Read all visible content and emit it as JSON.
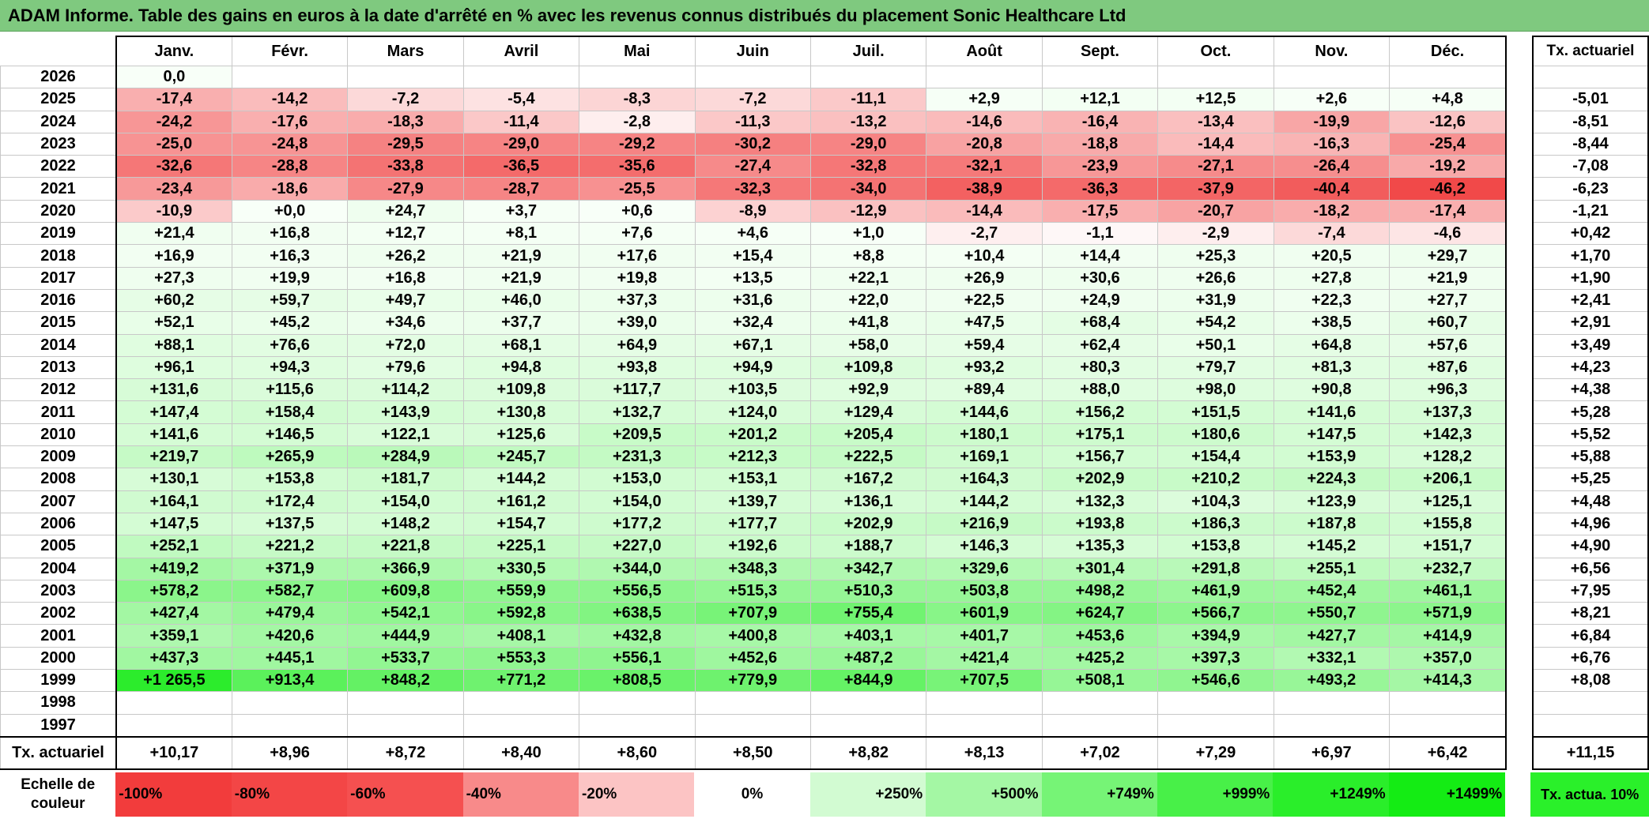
{
  "title": "ADAM Informe. Table des gains en euros à la date d'arrêté en % avec les revenus connus distribués du placement Sonic Healthcare Ltd",
  "months": [
    "Janv.",
    "Févr.",
    "Mars",
    "Avril",
    "Mai",
    "Juin",
    "Juil.",
    "Août",
    "Sept.",
    "Oct.",
    "Nov.",
    "Déc."
  ],
  "side_header": "Tx. actuariel",
  "rows": [
    {
      "year": "2026",
      "values": [
        "0,0",
        "",
        "",
        "",
        "",
        "",
        "",
        "",
        "",
        "",
        "",
        ""
      ],
      "rate": ""
    },
    {
      "year": "2025",
      "values": [
        "-17,4",
        "-14,2",
        "-7,2",
        "-5,4",
        "-8,3",
        "-7,2",
        "-11,1",
        "+2,9",
        "+12,1",
        "+12,5",
        "+2,6",
        "+4,8"
      ],
      "rate": "-5,01"
    },
    {
      "year": "2024",
      "values": [
        "-24,2",
        "-17,6",
        "-18,3",
        "-11,4",
        "-2,8",
        "-11,3",
        "-13,2",
        "-14,6",
        "-16,4",
        "-13,4",
        "-19,9",
        "-12,6"
      ],
      "rate": "-8,51"
    },
    {
      "year": "2023",
      "values": [
        "-25,0",
        "-24,8",
        "-29,5",
        "-29,0",
        "-29,2",
        "-30,2",
        "-29,0",
        "-20,8",
        "-18,8",
        "-14,4",
        "-16,3",
        "-25,4"
      ],
      "rate": "-8,44"
    },
    {
      "year": "2022",
      "values": [
        "-32,6",
        "-28,8",
        "-33,8",
        "-36,5",
        "-35,6",
        "-27,4",
        "-32,8",
        "-32,1",
        "-23,9",
        "-27,1",
        "-26,4",
        "-19,2"
      ],
      "rate": "-7,08"
    },
    {
      "year": "2021",
      "values": [
        "-23,4",
        "-18,6",
        "-27,9",
        "-28,7",
        "-25,5",
        "-32,3",
        "-34,0",
        "-38,9",
        "-36,3",
        "-37,9",
        "-40,4",
        "-46,2"
      ],
      "rate": "-6,23"
    },
    {
      "year": "2020",
      "values": [
        "-10,9",
        "+0,0",
        "+24,7",
        "+3,7",
        "+0,6",
        "-8,9",
        "-12,9",
        "-14,4",
        "-17,5",
        "-20,7",
        "-18,2",
        "-17,4"
      ],
      "rate": "-1,21"
    },
    {
      "year": "2019",
      "values": [
        "+21,4",
        "+16,8",
        "+12,7",
        "+8,1",
        "+7,6",
        "+4,6",
        "+1,0",
        "-2,7",
        "-1,1",
        "-2,9",
        "-7,4",
        "-4,6"
      ],
      "rate": "+0,42"
    },
    {
      "year": "2018",
      "values": [
        "+16,9",
        "+16,3",
        "+26,2",
        "+21,9",
        "+17,6",
        "+15,4",
        "+8,8",
        "+10,4",
        "+14,4",
        "+25,3",
        "+20,5",
        "+29,7"
      ],
      "rate": "+1,70"
    },
    {
      "year": "2017",
      "values": [
        "+27,3",
        "+19,9",
        "+16,8",
        "+21,9",
        "+19,8",
        "+13,5",
        "+22,1",
        "+26,9",
        "+30,6",
        "+26,6",
        "+27,8",
        "+21,9"
      ],
      "rate": "+1,90"
    },
    {
      "year": "2016",
      "values": [
        "+60,2",
        "+59,7",
        "+49,7",
        "+46,0",
        "+37,3",
        "+31,6",
        "+22,0",
        "+22,5",
        "+24,9",
        "+31,9",
        "+22,3",
        "+27,7"
      ],
      "rate": "+2,41"
    },
    {
      "year": "2015",
      "values": [
        "+52,1",
        "+45,2",
        "+34,6",
        "+37,7",
        "+39,0",
        "+32,4",
        "+41,8",
        "+47,5",
        "+68,4",
        "+54,2",
        "+38,5",
        "+60,7"
      ],
      "rate": "+2,91"
    },
    {
      "year": "2014",
      "values": [
        "+88,1",
        "+76,6",
        "+72,0",
        "+68,1",
        "+64,9",
        "+67,1",
        "+58,0",
        "+59,4",
        "+62,4",
        "+50,1",
        "+64,8",
        "+57,6"
      ],
      "rate": "+3,49"
    },
    {
      "year": "2013",
      "values": [
        "+96,1",
        "+94,3",
        "+79,6",
        "+94,8",
        "+93,8",
        "+94,9",
        "+109,8",
        "+93,2",
        "+80,3",
        "+79,7",
        "+81,3",
        "+87,6"
      ],
      "rate": "+4,23"
    },
    {
      "year": "2012",
      "values": [
        "+131,6",
        "+115,6",
        "+114,2",
        "+109,8",
        "+117,7",
        "+103,5",
        "+92,9",
        "+89,4",
        "+88,0",
        "+98,0",
        "+90,8",
        "+96,3"
      ],
      "rate": "+4,38"
    },
    {
      "year": "2011",
      "values": [
        "+147,4",
        "+158,4",
        "+143,9",
        "+130,8",
        "+132,7",
        "+124,0",
        "+129,4",
        "+144,6",
        "+156,2",
        "+151,5",
        "+141,6",
        "+137,3"
      ],
      "rate": "+5,28"
    },
    {
      "year": "2010",
      "values": [
        "+141,6",
        "+146,5",
        "+122,1",
        "+125,6",
        "+209,5",
        "+201,2",
        "+205,4",
        "+180,1",
        "+175,1",
        "+180,6",
        "+147,5",
        "+142,3"
      ],
      "rate": "+5,52"
    },
    {
      "year": "2009",
      "values": [
        "+219,7",
        "+265,9",
        "+284,9",
        "+245,7",
        "+231,3",
        "+212,3",
        "+222,5",
        "+169,1",
        "+156,7",
        "+154,4",
        "+153,9",
        "+128,2"
      ],
      "rate": "+5,88"
    },
    {
      "year": "2008",
      "values": [
        "+130,1",
        "+153,8",
        "+181,7",
        "+144,2",
        "+153,0",
        "+153,1",
        "+167,2",
        "+164,3",
        "+202,9",
        "+210,2",
        "+224,3",
        "+206,1"
      ],
      "rate": "+5,25"
    },
    {
      "year": "2007",
      "values": [
        "+164,1",
        "+172,4",
        "+154,0",
        "+161,2",
        "+154,0",
        "+139,7",
        "+136,1",
        "+144,2",
        "+132,3",
        "+104,3",
        "+123,9",
        "+125,1"
      ],
      "rate": "+4,48"
    },
    {
      "year": "2006",
      "values": [
        "+147,5",
        "+137,5",
        "+148,2",
        "+154,7",
        "+177,2",
        "+177,7",
        "+202,9",
        "+216,9",
        "+193,8",
        "+186,3",
        "+187,8",
        "+155,8"
      ],
      "rate": "+4,96"
    },
    {
      "year": "2005",
      "values": [
        "+252,1",
        "+221,2",
        "+221,8",
        "+225,1",
        "+227,0",
        "+192,6",
        "+188,7",
        "+146,3",
        "+135,3",
        "+153,8",
        "+145,2",
        "+151,7"
      ],
      "rate": "+4,90"
    },
    {
      "year": "2004",
      "values": [
        "+419,2",
        "+371,9",
        "+366,9",
        "+330,5",
        "+344,0",
        "+348,3",
        "+342,7",
        "+329,6",
        "+301,4",
        "+291,8",
        "+255,1",
        "+232,7"
      ],
      "rate": "+6,56"
    },
    {
      "year": "2003",
      "values": [
        "+578,2",
        "+582,7",
        "+609,8",
        "+559,9",
        "+556,5",
        "+515,3",
        "+510,3",
        "+503,8",
        "+498,2",
        "+461,9",
        "+452,4",
        "+461,1"
      ],
      "rate": "+7,95"
    },
    {
      "year": "2002",
      "values": [
        "+427,4",
        "+479,4",
        "+542,1",
        "+592,8",
        "+638,5",
        "+707,9",
        "+755,4",
        "+601,9",
        "+624,7",
        "+566,7",
        "+550,7",
        "+571,9"
      ],
      "rate": "+8,21"
    },
    {
      "year": "2001",
      "values": [
        "+359,1",
        "+420,6",
        "+444,9",
        "+408,1",
        "+432,8",
        "+400,8",
        "+403,1",
        "+401,7",
        "+453,6",
        "+394,9",
        "+427,7",
        "+414,9"
      ],
      "rate": "+6,84"
    },
    {
      "year": "2000",
      "values": [
        "+437,3",
        "+445,1",
        "+533,7",
        "+553,3",
        "+556,1",
        "+452,6",
        "+487,2",
        "+421,4",
        "+425,2",
        "+397,3",
        "+332,1",
        "+357,0"
      ],
      "rate": "+6,76"
    },
    {
      "year": "1999",
      "values": [
        "+1 265,5",
        "+913,4",
        "+848,2",
        "+771,2",
        "+808,5",
        "+779,9",
        "+844,9",
        "+707,5",
        "+508,1",
        "+546,6",
        "+493,2",
        "+414,3"
      ],
      "rate": "+8,08"
    },
    {
      "year": "1998",
      "values": [
        "",
        "",
        "",
        "",
        "",
        "",
        "",
        "",
        "",
        "",
        "",
        ""
      ],
      "rate": ""
    },
    {
      "year": "1997",
      "values": [
        "",
        "",
        "",
        "",
        "",
        "",
        "",
        "",
        "",
        "",
        "",
        ""
      ],
      "rate": ""
    }
  ],
  "totals": {
    "label": "Tx. actuariel",
    "values": [
      "+10,17",
      "+8,96",
      "+8,72",
      "+8,40",
      "+8,60",
      "+8,50",
      "+8,82",
      "+8,13",
      "+7,02",
      "+7,29",
      "+6,97",
      "+6,42"
    ],
    "rate": "+11,15"
  },
  "scale": {
    "label": "Echelle de couleur",
    "steps": [
      {
        "text": "-100%",
        "color": "#f23c3c",
        "align": "left"
      },
      {
        "text": "-80%",
        "color": "#f34646",
        "align": "left"
      },
      {
        "text": "-60%",
        "color": "#f55050",
        "align": "left"
      },
      {
        "text": "-40%",
        "color": "#f88a8a",
        "align": "left"
      },
      {
        "text": "-20%",
        "color": "#fcc4c4",
        "align": "left"
      },
      {
        "text": "0%",
        "color": "#ffffff",
        "align": "center"
      },
      {
        "text": "+250%",
        "color": "#d2fbd2",
        "align": "right"
      },
      {
        "text": "+500%",
        "color": "#a4f7a4",
        "align": "right"
      },
      {
        "text": "+749%",
        "color": "#76f476",
        "align": "right"
      },
      {
        "text": "+999%",
        "color": "#48f048",
        "align": "right"
      },
      {
        "text": "+1249%",
        "color": "#2aee2a",
        "align": "right"
      },
      {
        "text": "+1499%",
        "color": "#14ec14",
        "align": "right"
      }
    ],
    "legend": "Tx. actua. 10%",
    "legend_color": "#2af02a"
  }
}
